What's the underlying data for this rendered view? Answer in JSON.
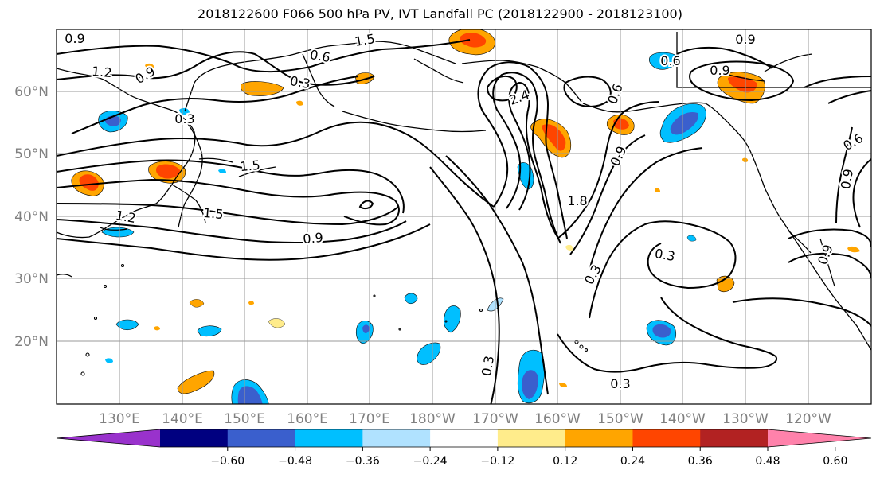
{
  "title": "2018122600 F066 500 hPa PV, IVT Landfall PC (2018122900 - 2018123100)",
  "map": {
    "lon_labels": [
      "130°E",
      "140°E",
      "150°E",
      "160°E",
      "170°E",
      "180°W",
      "170°W",
      "160°W",
      "150°W",
      "140°W",
      "130°W",
      "120°W"
    ],
    "lat_labels": [
      "60°N",
      "50°N",
      "40°N",
      "30°N",
      "20°N"
    ],
    "grid_color": "#999999",
    "axis_label_color": "#808080"
  },
  "contour_labels": [
    {
      "text": "0.9",
      "rot": 0
    },
    {
      "text": "1.5",
      "rot": -10
    },
    {
      "text": "0.6",
      "rot": 10
    },
    {
      "text": "0.9",
      "rot": 0
    },
    {
      "text": "0.6",
      "rot": 0
    },
    {
      "text": "0.9",
      "rot": 0
    },
    {
      "text": "1.2",
      "rot": 5
    },
    {
      "text": "0.9",
      "rot": -30
    },
    {
      "text": "0.3",
      "rot": 10
    },
    {
      "text": "0.3",
      "rot": 0
    },
    {
      "text": "1.5",
      "rot": -5
    },
    {
      "text": "1.5",
      "rot": 5
    },
    {
      "text": "1.2",
      "rot": 10
    },
    {
      "text": "0.9",
      "rot": -5
    },
    {
      "text": "2.4",
      "rot": -20
    },
    {
      "text": "0.9",
      "rot": -65
    },
    {
      "text": "1.8",
      "rot": 0
    },
    {
      "text": "0.3",
      "rot": -60
    },
    {
      "text": "0.3",
      "rot": 10
    },
    {
      "text": "0.3",
      "rot": -80
    },
    {
      "text": "0.3",
      "rot": 0
    },
    {
      "text": "0.6",
      "rot": -70
    },
    {
      "text": "0.9",
      "rot": -80
    },
    {
      "text": "0.9",
      "rot": -70
    },
    {
      "text": "0.6",
      "rot": -30
    }
  ],
  "colorbar": {
    "colors": [
      "#9932cc",
      "#000080",
      "#3a5fcd",
      "#00bfff",
      "#b0e2ff",
      "#ffffff",
      "#ffec8b",
      "#ffa500",
      "#ff4500",
      "#b22222",
      "#ff82ab"
    ],
    "tick_labels": [
      "−0.60",
      "−0.48",
      "−0.36",
      "−0.24",
      "−0.12",
      "0.12",
      "0.24",
      "0.36",
      "0.48",
      "0.60"
    ]
  }
}
